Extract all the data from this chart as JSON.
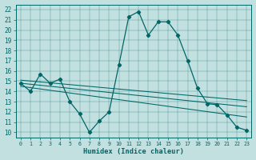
{
  "xlabel": "Humidex (Indice chaleur)",
  "bg_color": "#c2e0e0",
  "line_color": "#006666",
  "xlim": [
    -0.5,
    23.5
  ],
  "ylim": [
    9.5,
    22.5
  ],
  "xticks": [
    0,
    1,
    2,
    3,
    4,
    5,
    6,
    7,
    8,
    9,
    10,
    11,
    12,
    13,
    14,
    15,
    16,
    17,
    18,
    19,
    20,
    21,
    22,
    23
  ],
  "yticks": [
    10,
    11,
    12,
    13,
    14,
    15,
    16,
    17,
    18,
    19,
    20,
    21,
    22
  ],
  "main_x": [
    0,
    1,
    2,
    3,
    4,
    5,
    6,
    7,
    8,
    9,
    10,
    11,
    12,
    13,
    14,
    15,
    16,
    17,
    18,
    19,
    20,
    21,
    22,
    23
  ],
  "main_y": [
    14.8,
    14.0,
    15.7,
    14.8,
    15.2,
    13.0,
    11.8,
    10.0,
    11.1,
    12.0,
    16.6,
    21.3,
    21.8,
    19.5,
    20.8,
    20.8,
    19.5,
    17.0,
    14.3,
    12.8,
    12.7,
    11.7,
    10.5,
    10.2
  ],
  "reg_line1_x": [
    0,
    23
  ],
  "reg_line1_y": [
    15.1,
    13.1
  ],
  "reg_line2_x": [
    0,
    23
  ],
  "reg_line2_y": [
    14.8,
    12.5
  ],
  "reg_line3_x": [
    0,
    23
  ],
  "reg_line3_y": [
    14.5,
    11.5
  ]
}
